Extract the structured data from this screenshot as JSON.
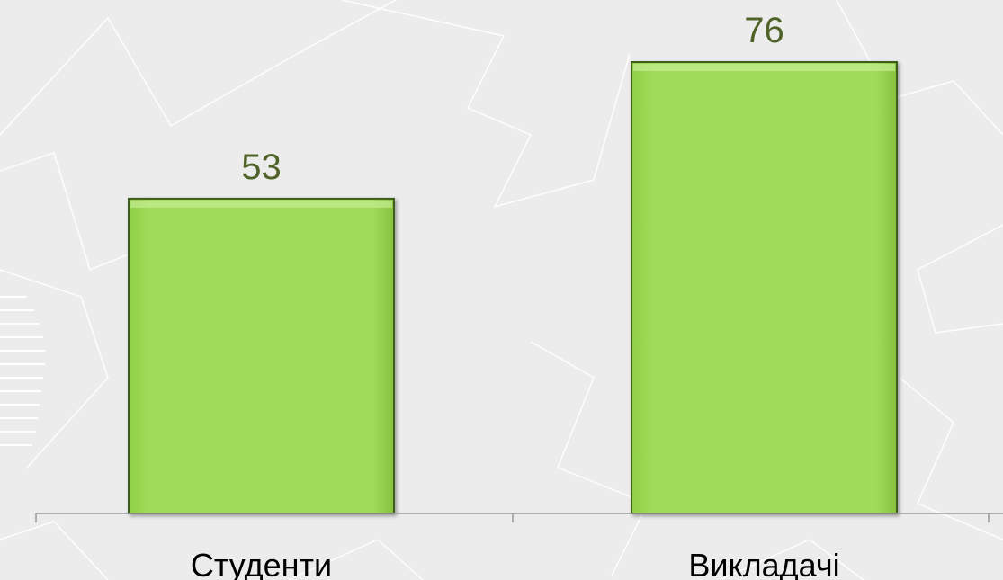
{
  "chart_data": {
    "type": "bar",
    "categories": [
      "Студенти",
      "Викладачі"
    ],
    "values": [
      53,
      76
    ],
    "color": "#a0dc5a"
  }
}
